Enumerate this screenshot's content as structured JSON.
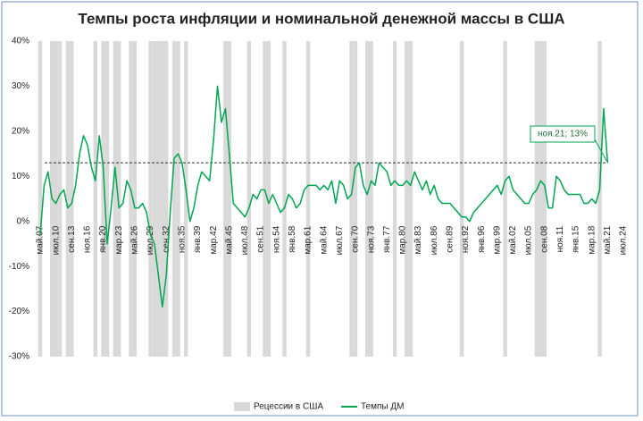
{
  "chart_data": {
    "type": "line",
    "title": "Темпы роста инфляции и номинальной денежной массы в США",
    "categories": [
      "май.07",
      null,
      null,
      null,
      "июл.10",
      null,
      null,
      null,
      "сен.13",
      null,
      null,
      null,
      "ноя.16",
      null,
      null,
      null,
      "янв.20",
      null,
      null,
      null,
      "мар.23",
      null,
      null,
      null,
      "май.26",
      null,
      null,
      null,
      "июл.29",
      null,
      null,
      null,
      "сен.32",
      null,
      null,
      null,
      "ноя.35",
      null,
      null,
      null,
      "янв.39",
      null,
      null,
      null,
      "мар.42",
      null,
      null,
      null,
      "май.45",
      null,
      null,
      null,
      "июл.48",
      null,
      null,
      null,
      "сен.51",
      null,
      null,
      null,
      "ноя.54",
      null,
      null,
      null,
      "янв.58",
      null,
      null,
      null,
      "мар.61",
      null,
      null,
      null,
      "май.64",
      null,
      null,
      null,
      "июл.67",
      null,
      null,
      null,
      "сен.70",
      null,
      null,
      null,
      "ноя.73",
      null,
      null,
      null,
      "янв.77",
      null,
      null,
      null,
      "мар.80",
      null,
      null,
      null,
      "май.83",
      null,
      null,
      null,
      "июл.86",
      null,
      null,
      null,
      "сен.89",
      null,
      null,
      null,
      "ноя.92",
      null,
      null,
      null,
      "янв.96",
      null,
      null,
      null,
      "мар.99",
      null,
      null,
      null,
      "май.02",
      null,
      null,
      null,
      "июл.05",
      null,
      null,
      null,
      "сен.08",
      null,
      null,
      null,
      "ноя.11",
      null,
      null,
      null,
      "янв.15",
      null,
      null,
      null,
      "мар.18",
      null,
      null,
      null,
      "май.21",
      null,
      null,
      null,
      "июл.24"
    ],
    "series": [
      {
        "name": "Рецессии в США",
        "type": "bar",
        "axis": "y2",
        "color": "#d9d9d9",
        "values": [
          1,
          null,
          null,
          1,
          1,
          1,
          null,
          1,
          1,
          null,
          null,
          null,
          null,
          null,
          1,
          null,
          1,
          1,
          null,
          1,
          1,
          null,
          null,
          1,
          1,
          null,
          null,
          null,
          1,
          1,
          1,
          1,
          1,
          null,
          1,
          1,
          null,
          1,
          null,
          null,
          null,
          null,
          null,
          null,
          null,
          null,
          null,
          1,
          1,
          null,
          null,
          null,
          null,
          1,
          null,
          null,
          null,
          1,
          1,
          null,
          null,
          null,
          1,
          null,
          null,
          null,
          null,
          null,
          1,
          null,
          null,
          null,
          null,
          null,
          null,
          null,
          null,
          null,
          null,
          1,
          1,
          null,
          null,
          1,
          1,
          null,
          null,
          null,
          null,
          null,
          1,
          null,
          null,
          1,
          1,
          null,
          null,
          null,
          null,
          null,
          null,
          null,
          null,
          null,
          null,
          null,
          null,
          1,
          null,
          null,
          null,
          null,
          null,
          null,
          null,
          null,
          null,
          null,
          1,
          null,
          null,
          null,
          null,
          null,
          null,
          null,
          1,
          1,
          1,
          null,
          null,
          null,
          null,
          null,
          null,
          null,
          null,
          null,
          null,
          null,
          null,
          null,
          1,
          null,
          null,
          null,
          null,
          null,
          null
        ]
      },
      {
        "name": "Темпы ДМ",
        "type": "line",
        "color": "#00a650",
        "values": [
          -3,
          8,
          11,
          5,
          4,
          6,
          7,
          3,
          4,
          8,
          15,
          19,
          17,
          12,
          9,
          19,
          12,
          -5,
          3,
          12,
          3,
          4,
          9,
          7,
          3,
          3,
          4,
          2,
          -3,
          -5,
          -12,
          -19,
          -12,
          2,
          14,
          15,
          13,
          7,
          0,
          3,
          8,
          11,
          10,
          9,
          18,
          30,
          22,
          25,
          15,
          4,
          3,
          2,
          1,
          3,
          6,
          5,
          7,
          7,
          4,
          6,
          4,
          2,
          3,
          6,
          5,
          3,
          4,
          7,
          8,
          8,
          8,
          7,
          8,
          7,
          9,
          4,
          9,
          8,
          5,
          6,
          12,
          13,
          8,
          6,
          9,
          8,
          13,
          12,
          11,
          8,
          9,
          8,
          8,
          9,
          8,
          11,
          9,
          7,
          9,
          6,
          8,
          5,
          4,
          4,
          4,
          3,
          2,
          1,
          1,
          0,
          2,
          3,
          4,
          5,
          6,
          7,
          8,
          6,
          9,
          10,
          7,
          6,
          5,
          4,
          4,
          6,
          7,
          9,
          8,
          3,
          3,
          10,
          9,
          7,
          6,
          6,
          6,
          6,
          4,
          4,
          5,
          4,
          7,
          25,
          13,
          null,
          null,
          null,
          null
        ]
      }
    ],
    "annotation": {
      "text": "ноя.21; 13%",
      "value": 13
    },
    "ylim": [
      -30,
      40
    ],
    "yticks": [
      {
        "value": -30,
        "label": "-30%"
      },
      {
        "value": -20,
        "label": "-20%"
      },
      {
        "value": -10,
        "label": "-10%"
      },
      {
        "value": 0,
        "label": "0%"
      },
      {
        "value": 10,
        "label": "10%"
      },
      {
        "value": 20,
        "label": "20%"
      },
      {
        "value": 30,
        "label": "30%"
      },
      {
        "value": 40,
        "label": "40%"
      }
    ],
    "y2lim": [
      0,
      1
    ],
    "legend": "bottom"
  }
}
